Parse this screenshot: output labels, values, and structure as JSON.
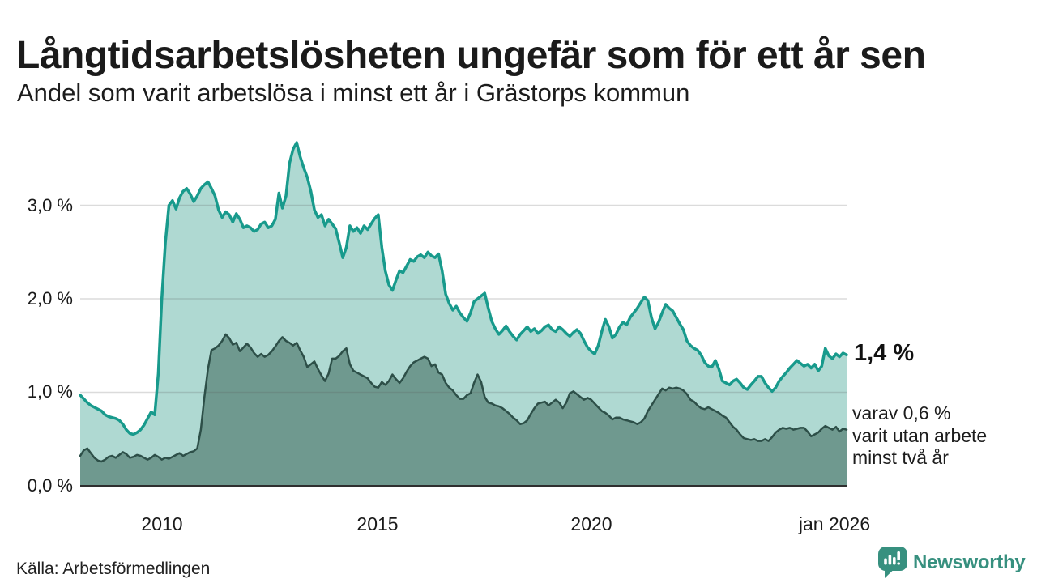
{
  "header": {
    "title": "Långtidsarbetslösheten ungefär som för ett år sen",
    "subtitle": "Andel som varit arbetslösa i minst ett år i Grästorps kommun"
  },
  "annotations": {
    "latest_total": "1,4 %",
    "latest_long": "varav 0,6 %\nvarit utan arbete\nminst två år"
  },
  "footer": {
    "source": "Källa: Arbetsförmedlingen",
    "brand": "Newsworthy"
  },
  "chart_data": {
    "type": "area",
    "title": "Långtidsarbetslösheten ungefär som för ett år sen",
    "subtitle": "Andel som varit arbetslösa i minst ett år i Grästorps kommun",
    "unit": "%",
    "frequency": "monthly",
    "x_start": "2008-01",
    "x_end": "2026-01",
    "ylim": [
      0,
      3.8
    ],
    "grid": true,
    "legend_position": "annotations-right",
    "y_ticks": [
      {
        "value": 0,
        "label": "0,0 %"
      },
      {
        "value": 1,
        "label": "1,0 %"
      },
      {
        "value": 2,
        "label": "2,0 %"
      },
      {
        "value": 3,
        "label": "3,0 %"
      }
    ],
    "x_ticks": [
      {
        "month_index": 24,
        "label": "2010"
      },
      {
        "month_index": 84,
        "label": "2015"
      },
      {
        "month_index": 144,
        "label": "2020"
      },
      {
        "month_index": 216,
        "label": "jan 2026"
      }
    ],
    "colors": {
      "total_line": "#189a8c",
      "total_fill": "#afd9d2",
      "long_line": "#2d4f48",
      "long_fill": "#6f998f",
      "gridline": "#dadada",
      "baseline": "#2f2f2f",
      "brand_teal": "#37907f"
    },
    "series": [
      {
        "name": "Andel arbetslösa minst ett år",
        "latest_value": 1.4,
        "values": [
          0.97,
          0.93,
          0.89,
          0.86,
          0.84,
          0.82,
          0.8,
          0.76,
          0.74,
          0.73,
          0.72,
          0.7,
          0.66,
          0.6,
          0.56,
          0.55,
          0.57,
          0.6,
          0.65,
          0.72,
          0.79,
          0.76,
          1.2,
          2.0,
          2.6,
          3.0,
          3.05,
          2.96,
          3.08,
          3.15,
          3.18,
          3.12,
          3.04,
          3.1,
          3.18,
          3.22,
          3.25,
          3.18,
          3.1,
          2.95,
          2.87,
          2.93,
          2.9,
          2.82,
          2.91,
          2.85,
          2.76,
          2.78,
          2.76,
          2.72,
          2.74,
          2.8,
          2.82,
          2.76,
          2.78,
          2.85,
          3.13,
          2.97,
          3.1,
          3.45,
          3.6,
          3.67,
          3.52,
          3.4,
          3.3,
          3.15,
          2.95,
          2.87,
          2.9,
          2.78,
          2.85,
          2.8,
          2.75,
          2.6,
          2.44,
          2.55,
          2.78,
          2.72,
          2.76,
          2.7,
          2.78,
          2.74,
          2.8,
          2.86,
          2.9,
          2.55,
          2.3,
          2.15,
          2.09,
          2.2,
          2.3,
          2.28,
          2.35,
          2.42,
          2.4,
          2.45,
          2.47,
          2.44,
          2.5,
          2.46,
          2.44,
          2.48,
          2.3,
          2.05,
          1.95,
          1.88,
          1.92,
          1.85,
          1.8,
          1.76,
          1.85,
          1.97,
          2.0,
          2.03,
          2.06,
          1.9,
          1.76,
          1.68,
          1.62,
          1.66,
          1.71,
          1.65,
          1.6,
          1.56,
          1.62,
          1.66,
          1.7,
          1.65,
          1.68,
          1.63,
          1.66,
          1.7,
          1.72,
          1.67,
          1.65,
          1.7,
          1.67,
          1.63,
          1.6,
          1.64,
          1.67,
          1.63,
          1.55,
          1.48,
          1.44,
          1.41,
          1.5,
          1.65,
          1.78,
          1.7,
          1.58,
          1.62,
          1.7,
          1.75,
          1.72,
          1.8,
          1.85,
          1.9,
          1.96,
          2.02,
          1.98,
          1.8,
          1.68,
          1.75,
          1.85,
          1.94,
          1.9,
          1.87,
          1.8,
          1.73,
          1.67,
          1.55,
          1.5,
          1.47,
          1.45,
          1.4,
          1.32,
          1.28,
          1.27,
          1.34,
          1.25,
          1.12,
          1.1,
          1.08,
          1.12,
          1.14,
          1.1,
          1.05,
          1.03,
          1.08,
          1.12,
          1.17,
          1.17,
          1.1,
          1.05,
          1.01,
          1.05,
          1.12,
          1.17,
          1.21,
          1.26,
          1.3,
          1.34,
          1.31,
          1.28,
          1.3,
          1.26,
          1.3,
          1.23,
          1.28,
          1.47,
          1.39,
          1.36,
          1.41,
          1.38,
          1.42,
          1.4
        ]
      },
      {
        "name": "varav utan arbete minst två år",
        "latest_value": 0.6,
        "values": [
          0.32,
          0.38,
          0.4,
          0.35,
          0.3,
          0.27,
          0.26,
          0.28,
          0.31,
          0.32,
          0.3,
          0.33,
          0.36,
          0.34,
          0.3,
          0.31,
          0.33,
          0.32,
          0.3,
          0.28,
          0.3,
          0.33,
          0.31,
          0.28,
          0.3,
          0.29,
          0.31,
          0.33,
          0.35,
          0.32,
          0.34,
          0.36,
          0.37,
          0.4,
          0.6,
          0.95,
          1.25,
          1.45,
          1.47,
          1.5,
          1.55,
          1.62,
          1.58,
          1.51,
          1.53,
          1.44,
          1.48,
          1.52,
          1.48,
          1.42,
          1.38,
          1.41,
          1.38,
          1.4,
          1.44,
          1.49,
          1.55,
          1.59,
          1.55,
          1.53,
          1.5,
          1.53,
          1.45,
          1.38,
          1.27,
          1.3,
          1.33,
          1.25,
          1.18,
          1.12,
          1.2,
          1.36,
          1.36,
          1.39,
          1.44,
          1.47,
          1.3,
          1.23,
          1.21,
          1.19,
          1.17,
          1.15,
          1.1,
          1.06,
          1.05,
          1.11,
          1.08,
          1.12,
          1.19,
          1.14,
          1.1,
          1.15,
          1.22,
          1.28,
          1.32,
          1.34,
          1.36,
          1.38,
          1.36,
          1.28,
          1.3,
          1.21,
          1.19,
          1.1,
          1.05,
          1.02,
          0.97,
          0.93,
          0.93,
          0.97,
          0.99,
          1.1,
          1.19,
          1.11,
          0.95,
          0.89,
          0.88,
          0.86,
          0.85,
          0.83,
          0.8,
          0.77,
          0.73,
          0.7,
          0.66,
          0.67,
          0.7,
          0.77,
          0.83,
          0.88,
          0.89,
          0.9,
          0.86,
          0.89,
          0.92,
          0.89,
          0.83,
          0.89,
          0.99,
          1.01,
          0.98,
          0.95,
          0.92,
          0.94,
          0.92,
          0.88,
          0.84,
          0.8,
          0.78,
          0.75,
          0.71,
          0.73,
          0.73,
          0.71,
          0.7,
          0.69,
          0.68,
          0.66,
          0.68,
          0.72,
          0.8,
          0.86,
          0.92,
          0.98,
          1.04,
          1.02,
          1.05,
          1.04,
          1.05,
          1.04,
          1.02,
          0.98,
          0.92,
          0.9,
          0.86,
          0.83,
          0.82,
          0.84,
          0.82,
          0.8,
          0.78,
          0.75,
          0.73,
          0.68,
          0.63,
          0.6,
          0.55,
          0.51,
          0.5,
          0.49,
          0.5,
          0.48,
          0.48,
          0.5,
          0.48,
          0.52,
          0.57,
          0.6,
          0.62,
          0.61,
          0.62,
          0.6,
          0.61,
          0.62,
          0.62,
          0.58,
          0.53,
          0.55,
          0.57,
          0.61,
          0.64,
          0.62,
          0.6,
          0.63,
          0.58,
          0.61,
          0.6
        ]
      }
    ]
  }
}
